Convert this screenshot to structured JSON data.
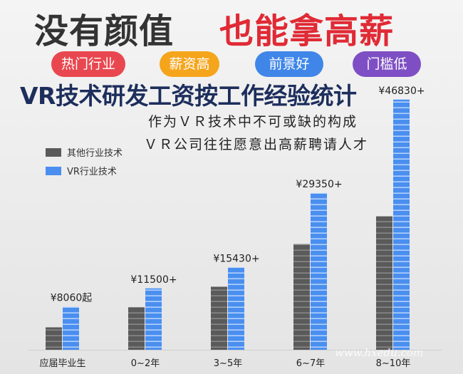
{
  "header": {
    "headline_left": "没有颜值",
    "headline_right": "也能拿高薪",
    "tags": [
      "热门行业",
      "薪资高",
      "前景好",
      "门槛低"
    ],
    "title": "VR技术研发工资按工作经验统计",
    "subtitle_lines": [
      "作为ＶＲ技术中不可或缺的构成",
      "ＶＲ公司往往愿意出高薪聘请人才"
    ]
  },
  "colors": {
    "other": "#5a5a5a",
    "vr": "#4a8ff0",
    "headline_red": "#e02a35",
    "title_navy": "#1d2e5c"
  },
  "watermark": "www.hxedu.com",
  "chart_data": {
    "type": "bar",
    "title": "VR技术研发工资按工作经验统计",
    "categories": [
      "应届毕业生",
      "0~2年",
      "3~5年",
      "6~7年",
      "8~10年"
    ],
    "series": [
      {
        "name": "其他行业技术",
        "values": [
          4200,
          8000,
          11800,
          19800,
          25000
        ]
      },
      {
        "name": "VR行业技术",
        "values": [
          8060,
          11500,
          15430,
          29350,
          46830
        ]
      }
    ],
    "value_labels": [
      "¥8060起",
      "¥11500+",
      "¥15430+",
      "¥29350+",
      "¥46830+"
    ],
    "ylim": [
      0,
      50000
    ],
    "legend_position": "top-left",
    "grid": false
  }
}
